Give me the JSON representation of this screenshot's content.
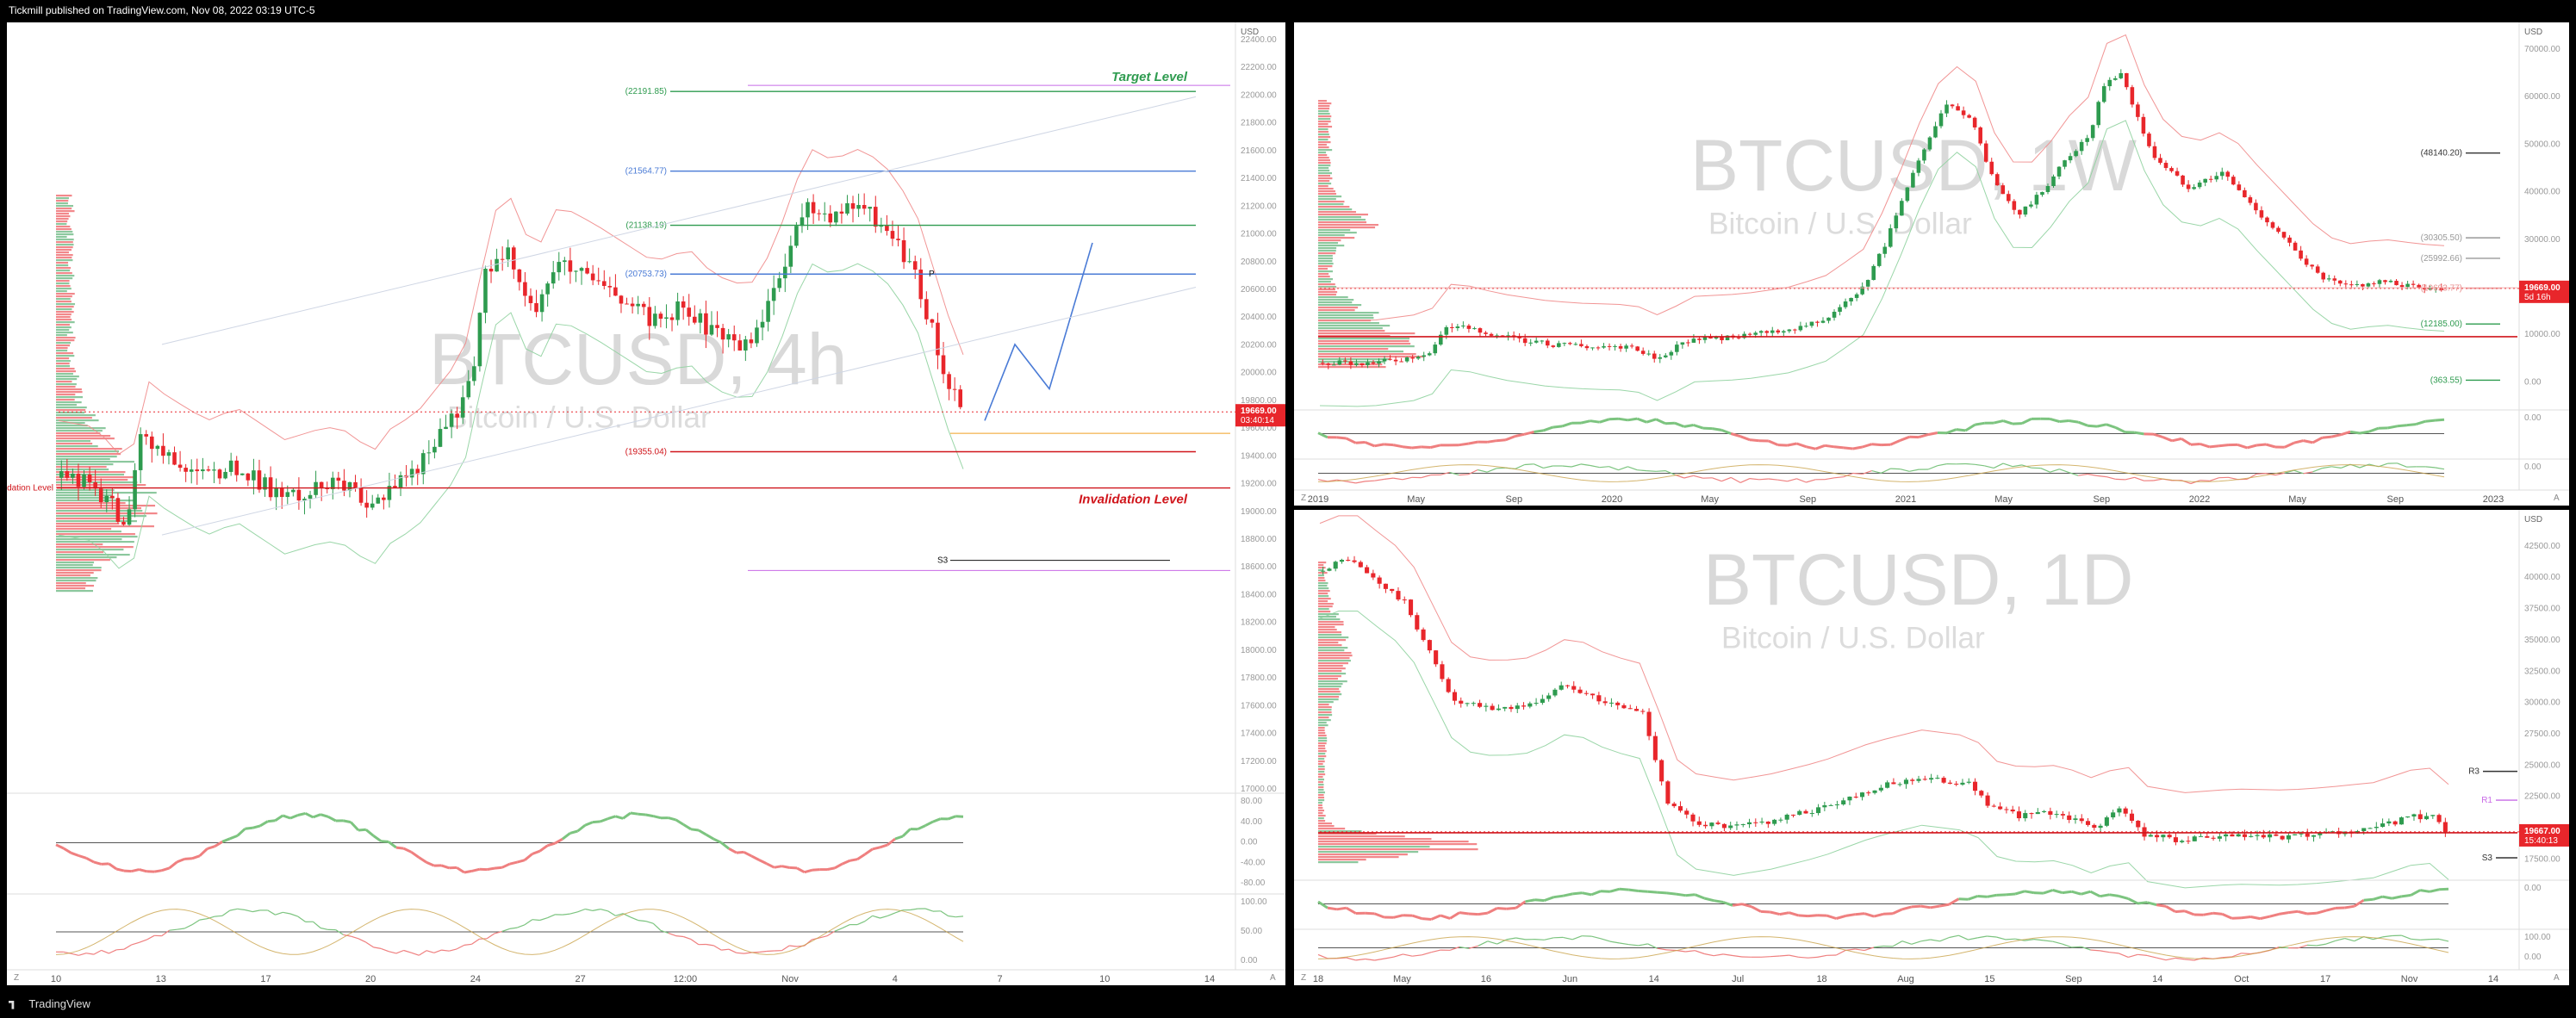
{
  "header": {
    "published": "Tickmill published on TradingView.com, Nov 08, 2022 03:19 UTC-5"
  },
  "footer": {
    "brand": "TradingView"
  },
  "colors": {
    "up": "#2e9b4f",
    "down": "#e8262b",
    "red_line": "#d0151b",
    "green_line": "#2e9b4f",
    "blue": "#4a7bd6",
    "purple": "#c86ae6",
    "orange": "#f0a020"
  },
  "charts": [
    {
      "id": "btc-4h",
      "symbol": "BTCUSD, 4h",
      "subtitle": "Bitcoin / U.S. Dollar",
      "currency": "USD",
      "price_label": "19669.00",
      "time_label": "03:40:14",
      "target_label": "Target Level",
      "invalidation_label": "Invalidation Level",
      "level_labels": [
        "(22191.85)",
        "(21564.77)",
        "(21138.19)",
        "(20753.73)",
        "(19355.04)"
      ],
      "pivot_labels": [
        "P",
        "S3"
      ],
      "y_ticks": [
        "22400.00",
        "22200.00",
        "22000.00",
        "21800.00",
        "21600.00",
        "21400.00",
        "21200.00",
        "21000.00",
        "20800.00",
        "20600.00",
        "20400.00",
        "20200.00",
        "20000.00",
        "19800.00",
        "19600.00",
        "19400.00",
        "19200.00",
        "19000.00",
        "18800.00",
        "18600.00",
        "18400.00",
        "18200.00",
        "18000.00",
        "17800.00",
        "17600.00",
        "17400.00",
        "17200.00",
        "17000.00"
      ],
      "x_ticks": [
        "10",
        "13",
        "17",
        "20",
        "24",
        "27",
        "12:00",
        "Nov",
        "4",
        "7",
        "10",
        "14"
      ],
      "rsi_ticks": [
        "80.00",
        "40.00",
        "0.00",
        "-40.00",
        "-80.00"
      ],
      "stoch_ticks": [
        "100.00",
        "50.00",
        "0.00"
      ],
      "scale_buttons": [
        "Z",
        "A"
      ]
    },
    {
      "id": "btc-1w",
      "symbol": "BTCUSD, 1W",
      "subtitle": "Bitcoin / U.S. Dollar",
      "currency": "USD",
      "price_label": "19669.00",
      "time_label": "5d 16h",
      "level_labels": [
        "(48140.20)",
        "(30305.50)",
        "(25992.66)",
        "(19693.77)",
        "(12185.00)",
        "(363.55)"
      ],
      "y_ticks": [
        "70000.00",
        "60000.00",
        "50000.00",
        "40000.00",
        "30000.00",
        "20000.00",
        "10000.00",
        "0.00"
      ],
      "x_ticks": [
        "2019",
        "May",
        "Sep",
        "2020",
        "May",
        "Sep",
        "2021",
        "May",
        "Sep",
        "2022",
        "May",
        "Sep",
        "2023"
      ],
      "osc_ticks": [
        "0.00",
        "0.00"
      ],
      "scale_buttons": [
        "Z",
        "A"
      ]
    },
    {
      "id": "btc-1d",
      "symbol": "BTCUSD, 1D",
      "subtitle": "Bitcoin / U.S. Dollar",
      "currency": "USD",
      "price_label": "19667.00",
      "time_label": "15:40:13",
      "pivot_labels": [
        "R3",
        "R1",
        "S3"
      ],
      "y_ticks": [
        "42500.00",
        "40000.00",
        "37500.00",
        "35000.00",
        "32500.00",
        "30000.00",
        "27500.00",
        "25000.00",
        "22500.00",
        "20000.00",
        "17500.00"
      ],
      "x_ticks": [
        "18",
        "May",
        "16",
        "Jun",
        "14",
        "Jul",
        "18",
        "Aug",
        "15",
        "Sep",
        "14",
        "Oct",
        "17",
        "Nov",
        "14"
      ],
      "osc_ticks": [
        "0.00",
        "100.00",
        "0.00"
      ],
      "scale_buttons": [
        "Z",
        "A"
      ]
    }
  ],
  "chart_data": [
    {
      "type": "candlestick",
      "title": "BTCUSD, 4h",
      "subtitle": "Bitcoin / U.S. Dollar",
      "ylim": [
        16700,
        22600
      ],
      "close_path": [
        [
          0,
          19150
        ],
        [
          6,
          19100
        ],
        [
          10,
          18900
        ],
        [
          12,
          18700
        ],
        [
          14,
          19500
        ],
        [
          18,
          19350
        ],
        [
          25,
          19150
        ],
        [
          30,
          19250
        ],
        [
          38,
          19000
        ],
        [
          45,
          19100
        ],
        [
          50,
          19050
        ],
        [
          52,
          18850
        ],
        [
          56,
          19100
        ],
        [
          60,
          19200
        ],
        [
          66,
          19550
        ],
        [
          70,
          19900
        ],
        [
          72,
          20750
        ],
        [
          76,
          20900
        ],
        [
          80,
          20450
        ],
        [
          84,
          20850
        ],
        [
          90,
          20700
        ],
        [
          95,
          20550
        ],
        [
          100,
          20400
        ],
        [
          106,
          20500
        ],
        [
          110,
          20300
        ],
        [
          116,
          20200
        ],
        [
          120,
          20500
        ],
        [
          123,
          20900
        ],
        [
          126,
          21300
        ],
        [
          130,
          21200
        ],
        [
          135,
          21300
        ],
        [
          140,
          21100
        ],
        [
          144,
          20800
        ],
        [
          146,
          20500
        ],
        [
          150,
          19900
        ],
        [
          152,
          19669
        ]
      ],
      "horizontal_levels": [
        {
          "value": 22191.85,
          "label": "(22191.85)",
          "color": "#2e9b4f"
        },
        {
          "value": 21564.77,
          "label": "(21564.77)",
          "color": "#4a7bd6"
        },
        {
          "value": 21138.19,
          "label": "(21138.19)",
          "color": "#2e9b4f"
        },
        {
          "value": 20753.73,
          "label": "(20753.73)",
          "color": "#4a7bd6"
        },
        {
          "value": 19355.04,
          "label": "(19355.04)",
          "color": "#d0151b"
        },
        {
          "value": 19070,
          "label": "Invalidation Level",
          "color": "#d0151b"
        }
      ],
      "current_price": 19669.0
    },
    {
      "type": "candlestick",
      "title": "BTCUSD, 1W",
      "subtitle": "Bitcoin / U.S. Dollar",
      "ylim": [
        -5000,
        72000
      ],
      "close_path": [
        [
          0,
          4000
        ],
        [
          8,
          3800
        ],
        [
          18,
          5500
        ],
        [
          22,
          12000
        ],
        [
          30,
          9500
        ],
        [
          38,
          8000
        ],
        [
          44,
          7500
        ],
        [
          52,
          7200
        ],
        [
          56,
          5000
        ],
        [
          62,
          9000
        ],
        [
          70,
          9500
        ],
        [
          78,
          11000
        ],
        [
          84,
          13500
        ],
        [
          90,
          19000
        ],
        [
          94,
          29000
        ],
        [
          100,
          48000
        ],
        [
          104,
          58000
        ],
        [
          108,
          56000
        ],
        [
          112,
          42000
        ],
        [
          116,
          35000
        ],
        [
          120,
          40000
        ],
        [
          124,
          47000
        ],
        [
          128,
          52000
        ],
        [
          130,
          62000
        ],
        [
          133,
          65000
        ],
        [
          138,
          48000
        ],
        [
          144,
          41000
        ],
        [
          150,
          44000
        ],
        [
          154,
          38000
        ],
        [
          160,
          30000
        ],
        [
          166,
          22000
        ],
        [
          170,
          20000
        ],
        [
          176,
          21000
        ],
        [
          182,
          20000
        ],
        [
          186,
          19669
        ]
      ],
      "horizontal_levels": [
        {
          "value": 48140.2,
          "label": "(48140.20)",
          "color": "#333"
        },
        {
          "value": 30305.5,
          "label": "(30305.50)",
          "color": "#999"
        },
        {
          "value": 25992.66,
          "label": "(25992.66)",
          "color": "#999"
        },
        {
          "value": 19693.77,
          "label": "(19693.77)",
          "color": "#e89090"
        },
        {
          "value": 12185.0,
          "label": "(12185.00)",
          "color": "#2e9b4f"
        },
        {
          "value": 363.55,
          "label": "(363.55)",
          "color": "#2e9b4f"
        }
      ],
      "current_price": 19669.0
    },
    {
      "type": "candlestick",
      "title": "BTCUSD, 1D",
      "subtitle": "Bitcoin / U.S. Dollar",
      "ylim": [
        16500,
        44000
      ],
      "close_path": [
        [
          0,
          40500
        ],
        [
          5,
          41500
        ],
        [
          10,
          39500
        ],
        [
          14,
          38000
        ],
        [
          18,
          34000
        ],
        [
          22,
          30000
        ],
        [
          28,
          29500
        ],
        [
          34,
          29800
        ],
        [
          40,
          31500
        ],
        [
          46,
          30000
        ],
        [
          52,
          29200
        ],
        [
          56,
          22000
        ],
        [
          60,
          20500
        ],
        [
          66,
          20000
        ],
        [
          72,
          20500
        ],
        [
          80,
          21500
        ],
        [
          88,
          23000
        ],
        [
          96,
          24000
        ],
        [
          104,
          23500
        ],
        [
          108,
          21500
        ],
        [
          112,
          21000
        ],
        [
          118,
          21200
        ],
        [
          124,
          20000
        ],
        [
          128,
          21500
        ],
        [
          132,
          19500
        ],
        [
          138,
          19000
        ],
        [
          146,
          19300
        ],
        [
          154,
          19200
        ],
        [
          160,
          19400
        ],
        [
          168,
          19800
        ],
        [
          174,
          20800
        ],
        [
          178,
          21000
        ],
        [
          180,
          19667
        ]
      ],
      "horizontal_levels": [
        {
          "value": 24500,
          "label": "R3",
          "color": "#333"
        },
        {
          "value": 22200,
          "label": "R1",
          "color": "#c86ae6"
        },
        {
          "value": 17600,
          "label": "S3",
          "color": "#333"
        }
      ],
      "current_price": 19667.0
    }
  ]
}
